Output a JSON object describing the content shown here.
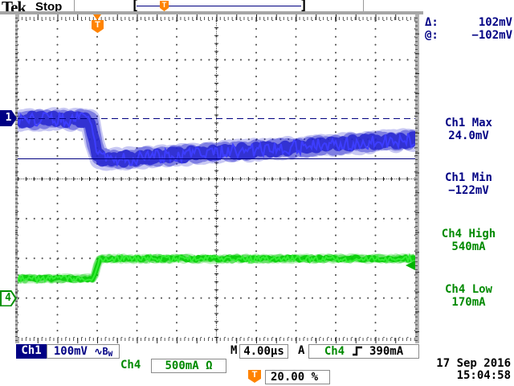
{
  "header": {
    "brand": "Tek",
    "status": "Stop",
    "record_bracket_left": "[",
    "record_bracket_right": "]",
    "record_trigger_icon": "T"
  },
  "graticule": {
    "trigger_flag": "T",
    "ch1_marker": "1",
    "ch4_marker": "4"
  },
  "measure_panel": {
    "delta_label": "Δ:",
    "delta_value": "102mV",
    "at_label": "@:",
    "at_value": "−102mV",
    "items": [
      {
        "label": "Ch1 Max",
        "value": "24.0mV"
      },
      {
        "label": "Ch1 Min",
        "value": "−122mV"
      },
      {
        "label": "Ch4 High",
        "value": "540mA"
      },
      {
        "label": "Ch4 Low",
        "value": "170mA"
      }
    ]
  },
  "status_bar": {
    "ch1_label": "Ch1",
    "ch1_scale": "100mV",
    "ch1_coupling_icon": "∿",
    "ch1_bw_main": "B",
    "ch1_bw_sub": "W",
    "timebase_label": "M",
    "timebase_value": "4.00µs",
    "trig_mode_label": "A",
    "trig_source": "Ch4",
    "trig_level": "390mA",
    "ch4_label": "Ch4",
    "ch4_scale": "500mA",
    "ch4_impedance": "Ω",
    "trig_pos_icon": "T",
    "trig_pos_value": "20.00 %",
    "date": "17 Sep 2016",
    "time": "15:04:58"
  },
  "colors": {
    "ch1_trace": "#2424cf",
    "ch1_core": "#3d3dff",
    "ch4_trace": "#00cc00",
    "ch4_core": "#33ee33",
    "navy": "#000084",
    "green": "#008a00",
    "orange": "#ff8300"
  },
  "chart_data": {
    "type": "line",
    "instrument": "oscilloscope",
    "timebase_us_per_div": 4,
    "divisions": {
      "x": 10,
      "y": 8
    },
    "trigger": {
      "source": "Ch4",
      "level_mA": 390,
      "slope": "rising",
      "position_pct": 20
    },
    "series": [
      {
        "name": "Ch1",
        "units": "mV",
        "scale_per_div": 100,
        "ground_div_from_top": 2.48,
        "color": "#2424cf",
        "core_color": "#3d3dff",
        "noise_pp": 48,
        "points": [
          [
            -8,
            -2
          ],
          [
            -0.75,
            -2
          ],
          [
            0.1,
            -97
          ],
          [
            1.5,
            -103
          ],
          [
            4,
            -99
          ],
          [
            8,
            -92
          ],
          [
            14,
            -82
          ],
          [
            20,
            -73
          ],
          [
            26,
            -62
          ],
          [
            32,
            -53
          ]
        ]
      },
      {
        "name": "Ch4",
        "units": "mA",
        "scale_per_div": 500,
        "ground_div_from_top": 7.01,
        "color": "#00cc00",
        "core_color": "#33ee33",
        "noise_pp": 105,
        "points": [
          [
            -8,
            250
          ],
          [
            -0.35,
            250
          ],
          [
            0.2,
            500
          ],
          [
            32,
            500
          ]
        ]
      }
    ],
    "cursors": {
      "channel": "Ch1",
      "type": "hbars",
      "values_mV": [
        0,
        -102
      ],
      "styles": [
        "dashed",
        "solid"
      ],
      "delta": "102mV",
      "at": "−102mV"
    },
    "measurements": {
      "ch1_max_mV": 24.0,
      "ch1_min_mV": -122,
      "ch4_high_mA": 540,
      "ch4_low_mA": 170
    }
  }
}
